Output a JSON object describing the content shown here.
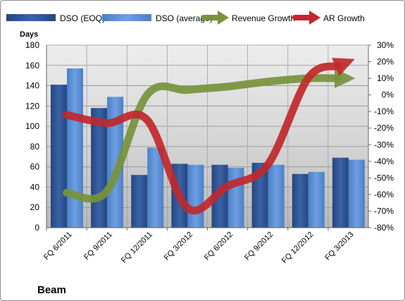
{
  "chart_data": {
    "type": "bar",
    "title": "Beam",
    "ylabel": "Days",
    "categories": [
      "FQ 6/2011",
      "FQ 9/2011",
      "FQ 12/2011",
      "FQ 3/2012",
      "FQ 6/2012",
      "FQ 9/2012",
      "FQ 12/2012",
      "FQ 3/2013"
    ],
    "series": [
      {
        "name": "DSO (EOQ)",
        "kind": "bar",
        "axis": "left",
        "color": "#2f5597",
        "values": [
          141,
          118,
          52,
          63,
          62,
          64,
          53,
          69
        ]
      },
      {
        "name": "DSO (average)",
        "kind": "bar",
        "axis": "left",
        "color": "#5b8fd6",
        "values": [
          157,
          129,
          79,
          62,
          59,
          62,
          55,
          67
        ]
      },
      {
        "name": "Revenue Growth",
        "kind": "arrow-line",
        "axis": "right",
        "color": "#77933c",
        "values": [
          -0.59,
          -0.58,
          0.0,
          0.03,
          0.05,
          0.08,
          0.1,
          0.1
        ]
      },
      {
        "name": "AR Growth",
        "kind": "arrow-line",
        "axis": "right",
        "color": "#c0282d",
        "values": [
          -0.12,
          -0.17,
          -0.15,
          -0.68,
          -0.55,
          -0.42,
          0.1,
          0.2
        ]
      }
    ],
    "left_axis": {
      "min": 0,
      "max": 180,
      "step": 20,
      "ticks": [
        "0",
        "20",
        "40",
        "60",
        "80",
        "100",
        "120",
        "140",
        "160",
        "180"
      ]
    },
    "right_axis": {
      "min": -0.8,
      "max": 0.3,
      "step": 0.1,
      "ticks": [
        "-80%",
        "-70%",
        "-60%",
        "-50%",
        "-40%",
        "-30%",
        "-20%",
        "-10%",
        "0%",
        "10%",
        "20%",
        "30%"
      ]
    },
    "legend_position": "top",
    "grid": true
  }
}
